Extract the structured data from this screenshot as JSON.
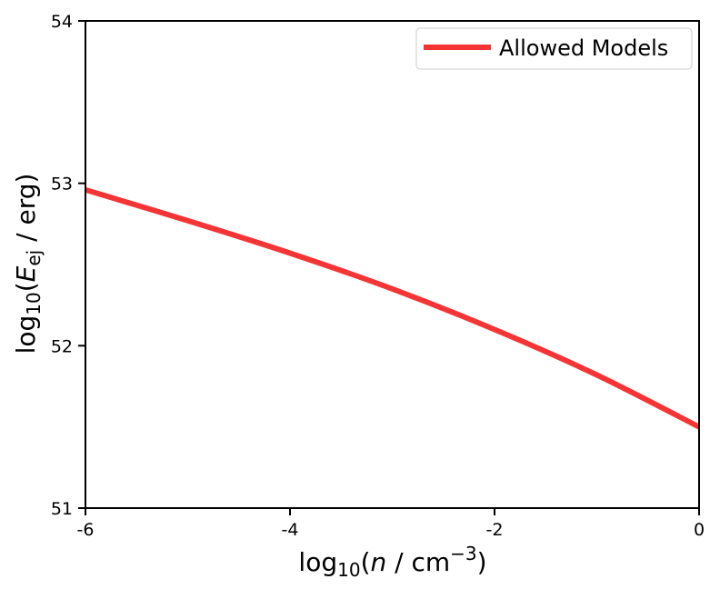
{
  "chart_data": {
    "type": "line",
    "xlabel": {
      "prefix": "log",
      "sub": "10",
      "open": "(",
      "var": "n",
      "mid": " / cm",
      "sup": "−3",
      "close": ")"
    },
    "ylabel": {
      "prefix": "log",
      "sub": "10",
      "open": "(",
      "var": "E",
      "varsub": "ej",
      "rest": " / erg)"
    },
    "xlim": [
      -6,
      0
    ],
    "ylim": [
      51,
      54
    ],
    "xticks": [
      -6,
      -4,
      -2,
      0
    ],
    "xtick_labels": [
      "-6",
      "-4",
      "-2",
      "0"
    ],
    "yticks": [
      51,
      52,
      53,
      54
    ],
    "ytick_labels": [
      "51",
      "52",
      "53",
      "54"
    ],
    "grid": false,
    "legend_position": "top-right",
    "series": [
      {
        "name": "Allowed Models",
        "color": "#f53535",
        "x": [
          -6,
          -5,
          -4,
          -3,
          -2,
          -1,
          0
        ],
        "y": [
          52.96,
          52.77,
          52.57,
          52.35,
          52.1,
          51.82,
          51.5
        ]
      }
    ]
  }
}
